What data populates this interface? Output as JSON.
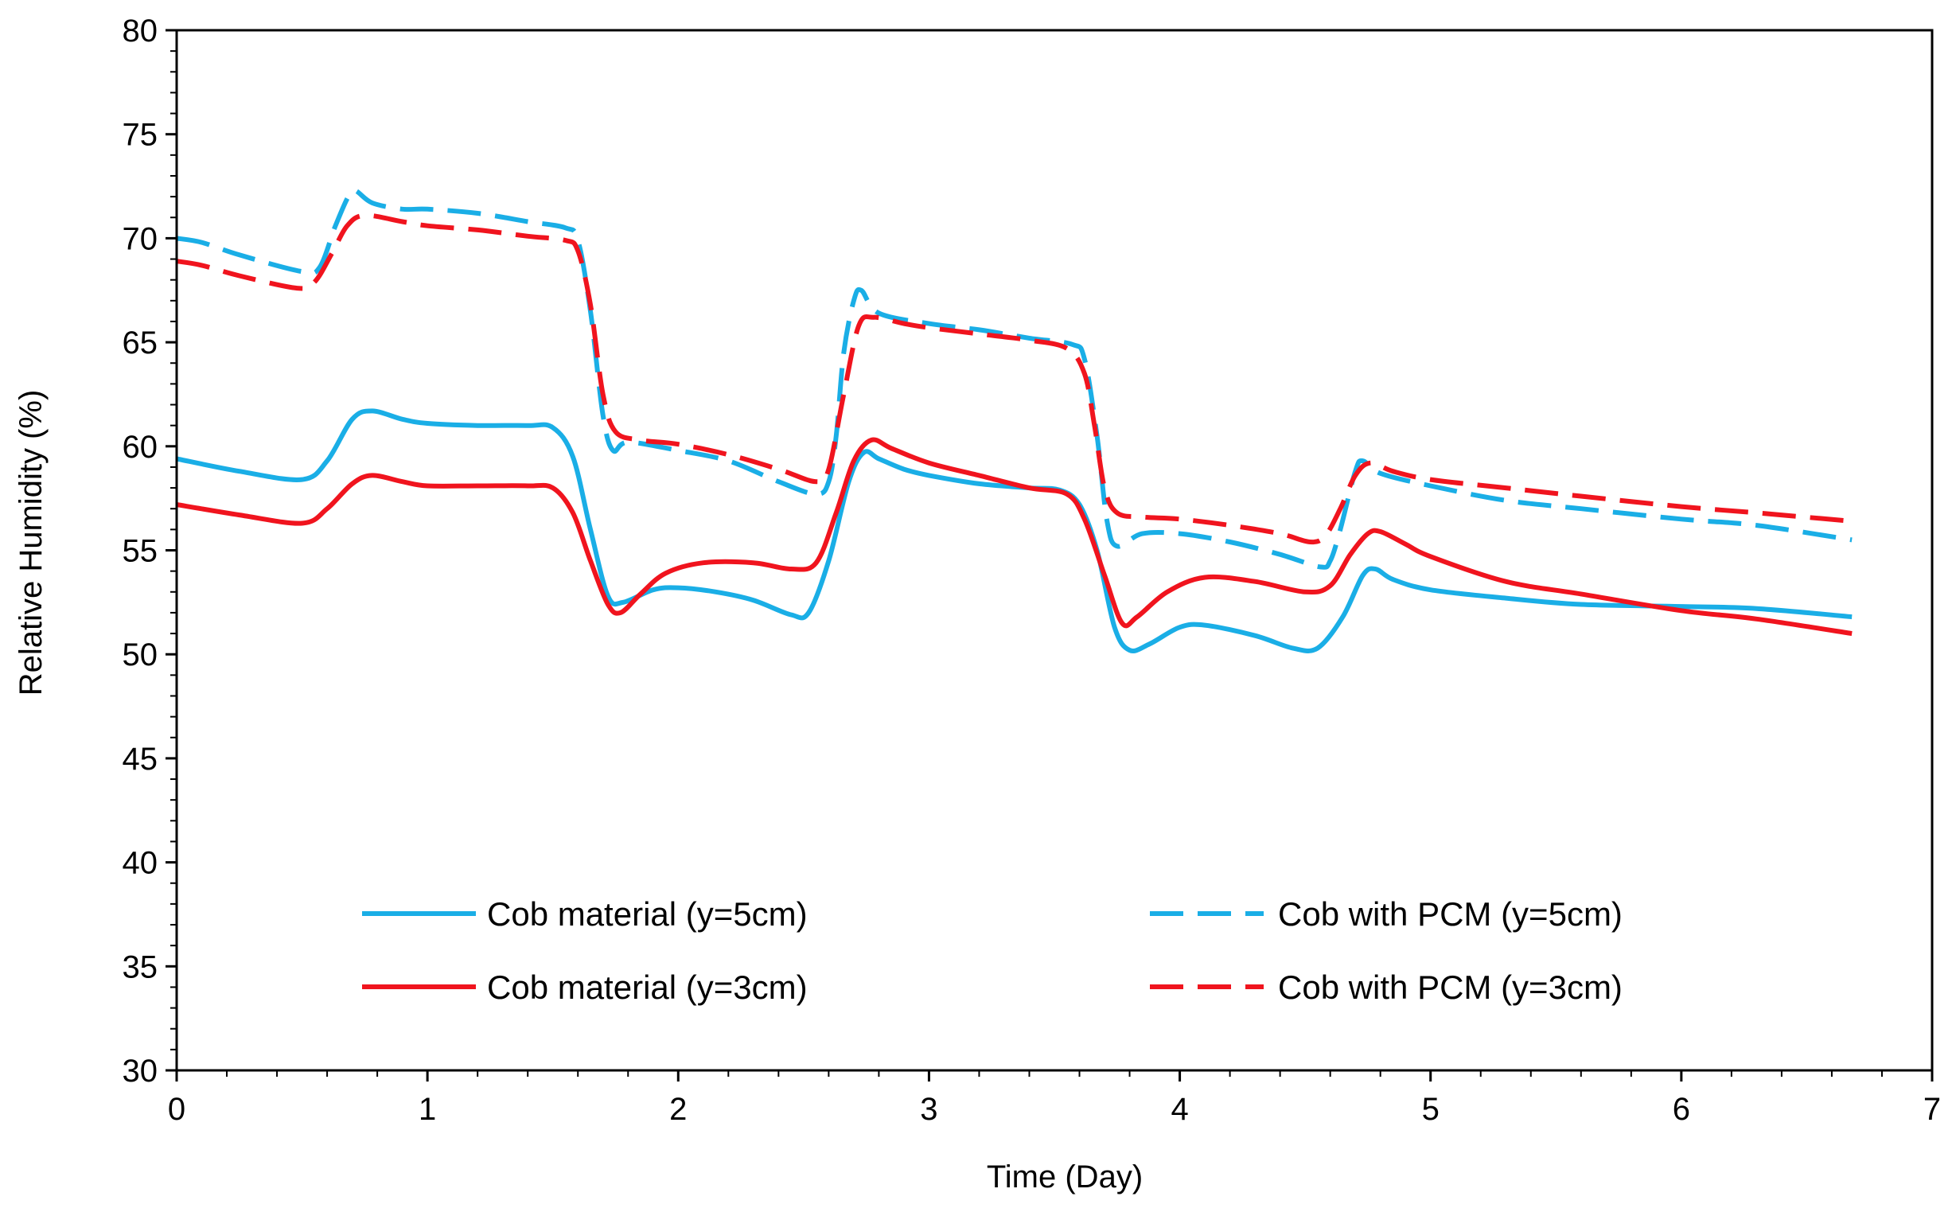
{
  "chart_data": {
    "type": "line",
    "title": "",
    "xlabel": "Time (Day)",
    "ylabel": "Relative Humidity (%)",
    "xlim": [
      0,
      7
    ],
    "ylim": [
      30,
      80
    ],
    "x_ticks": [
      "0",
      "1",
      "2",
      "3",
      "4",
      "5",
      "6",
      "7"
    ],
    "y_ticks": [
      "30",
      "35",
      "40",
      "45",
      "50",
      "55",
      "60",
      "65",
      "70",
      "75",
      "80"
    ],
    "grid": false,
    "legend_position": "lower-center",
    "series": [
      {
        "name": "Cob material (y=5cm)",
        "color": "#1aaee6",
        "style": "solid",
        "points": [
          [
            0,
            59.4
          ],
          [
            0.25,
            58.8
          ],
          [
            0.5,
            58.4
          ],
          [
            0.6,
            59.3
          ],
          [
            0.7,
            61.3
          ],
          [
            0.78,
            61.7
          ],
          [
            0.9,
            61.3
          ],
          [
            1.0,
            61.1
          ],
          [
            1.2,
            61.0
          ],
          [
            1.4,
            61.0
          ],
          [
            1.5,
            60.9
          ],
          [
            1.58,
            59.5
          ],
          [
            1.65,
            56.0
          ],
          [
            1.72,
            52.8
          ],
          [
            1.78,
            52.5
          ],
          [
            1.9,
            53.1
          ],
          [
            2.0,
            53.2
          ],
          [
            2.15,
            53.0
          ],
          [
            2.3,
            52.6
          ],
          [
            2.45,
            51.9
          ],
          [
            2.52,
            52.0
          ],
          [
            2.6,
            54.5
          ],
          [
            2.68,
            58.3
          ],
          [
            2.74,
            59.7
          ],
          [
            2.8,
            59.4
          ],
          [
            2.9,
            58.9
          ],
          [
            3.0,
            58.6
          ],
          [
            3.2,
            58.2
          ],
          [
            3.4,
            58.0
          ],
          [
            3.52,
            57.9
          ],
          [
            3.6,
            57.2
          ],
          [
            3.67,
            55.0
          ],
          [
            3.74,
            51.3
          ],
          [
            3.8,
            50.2
          ],
          [
            3.88,
            50.5
          ],
          [
            4.0,
            51.3
          ],
          [
            4.1,
            51.4
          ],
          [
            4.3,
            50.9
          ],
          [
            4.45,
            50.3
          ],
          [
            4.55,
            50.3
          ],
          [
            4.65,
            51.8
          ],
          [
            4.73,
            53.8
          ],
          [
            4.78,
            54.1
          ],
          [
            4.85,
            53.6
          ],
          [
            5.0,
            53.1
          ],
          [
            5.3,
            52.7
          ],
          [
            5.6,
            52.4
          ],
          [
            6.0,
            52.3
          ],
          [
            6.3,
            52.2
          ],
          [
            6.68,
            51.8
          ]
        ]
      },
      {
        "name": "Cob material (y=3cm)",
        "color": "#f0141e",
        "style": "solid",
        "points": [
          [
            0,
            57.2
          ],
          [
            0.25,
            56.7
          ],
          [
            0.5,
            56.3
          ],
          [
            0.6,
            57.0
          ],
          [
            0.7,
            58.2
          ],
          [
            0.78,
            58.6
          ],
          [
            0.9,
            58.3
          ],
          [
            1.0,
            58.1
          ],
          [
            1.2,
            58.1
          ],
          [
            1.4,
            58.1
          ],
          [
            1.5,
            58.0
          ],
          [
            1.58,
            56.8
          ],
          [
            1.65,
            54.5
          ],
          [
            1.72,
            52.4
          ],
          [
            1.77,
            52.0
          ],
          [
            1.85,
            52.9
          ],
          [
            1.95,
            53.9
          ],
          [
            2.1,
            54.4
          ],
          [
            2.3,
            54.4
          ],
          [
            2.45,
            54.1
          ],
          [
            2.55,
            54.4
          ],
          [
            2.63,
            56.8
          ],
          [
            2.7,
            59.3
          ],
          [
            2.77,
            60.3
          ],
          [
            2.85,
            59.9
          ],
          [
            3.0,
            59.2
          ],
          [
            3.2,
            58.6
          ],
          [
            3.4,
            58.0
          ],
          [
            3.55,
            57.7
          ],
          [
            3.62,
            56.5
          ],
          [
            3.7,
            53.8
          ],
          [
            3.77,
            51.5
          ],
          [
            3.83,
            51.8
          ],
          [
            3.95,
            53.0
          ],
          [
            4.1,
            53.7
          ],
          [
            4.3,
            53.5
          ],
          [
            4.5,
            53.0
          ],
          [
            4.6,
            53.3
          ],
          [
            4.68,
            54.8
          ],
          [
            4.75,
            55.8
          ],
          [
            4.8,
            55.9
          ],
          [
            4.9,
            55.3
          ],
          [
            5.0,
            54.7
          ],
          [
            5.3,
            53.5
          ],
          [
            5.6,
            52.9
          ],
          [
            6.0,
            52.1
          ],
          [
            6.3,
            51.7
          ],
          [
            6.68,
            51.0
          ]
        ]
      },
      {
        "name": "Cob with PCM (y=5cm)",
        "color": "#1aaee6",
        "style": "dashed",
        "points": [
          [
            0,
            70.0
          ],
          [
            0.1,
            69.8
          ],
          [
            0.25,
            69.2
          ],
          [
            0.5,
            68.4
          ],
          [
            0.57,
            68.6
          ],
          [
            0.63,
            70.5
          ],
          [
            0.68,
            71.9
          ],
          [
            0.71,
            72.3
          ],
          [
            0.78,
            71.7
          ],
          [
            0.9,
            71.4
          ],
          [
            1.0,
            71.4
          ],
          [
            1.2,
            71.2
          ],
          [
            1.4,
            70.8
          ],
          [
            1.55,
            70.5
          ],
          [
            1.6,
            69.9
          ],
          [
            1.65,
            66.5
          ],
          [
            1.7,
            61.5
          ],
          [
            1.74,
            59.8
          ],
          [
            1.8,
            60.2
          ],
          [
            2.0,
            59.8
          ],
          [
            2.2,
            59.3
          ],
          [
            2.4,
            58.3
          ],
          [
            2.55,
            57.7
          ],
          [
            2.6,
            58.3
          ],
          [
            2.63,
            60.5
          ],
          [
            2.66,
            64.5
          ],
          [
            2.7,
            67.0
          ],
          [
            2.73,
            67.5
          ],
          [
            2.8,
            66.4
          ],
          [
            3.0,
            65.9
          ],
          [
            3.2,
            65.6
          ],
          [
            3.4,
            65.2
          ],
          [
            3.57,
            64.9
          ],
          [
            3.62,
            64.2
          ],
          [
            3.67,
            60.5
          ],
          [
            3.71,
            56.4
          ],
          [
            3.75,
            55.2
          ],
          [
            3.85,
            55.8
          ],
          [
            4.0,
            55.8
          ],
          [
            4.2,
            55.4
          ],
          [
            4.4,
            54.8
          ],
          [
            4.56,
            54.2
          ],
          [
            4.6,
            54.5
          ],
          [
            4.64,
            56.0
          ],
          [
            4.7,
            58.8
          ],
          [
            4.73,
            59.3
          ],
          [
            4.8,
            58.7
          ],
          [
            5.0,
            58.1
          ],
          [
            5.3,
            57.4
          ],
          [
            5.6,
            57.0
          ],
          [
            6.0,
            56.5
          ],
          [
            6.3,
            56.2
          ],
          [
            6.68,
            55.5
          ]
        ]
      },
      {
        "name": "Cob with PCM (y=3cm)",
        "color": "#f0141e",
        "style": "dashed",
        "points": [
          [
            0,
            68.9
          ],
          [
            0.1,
            68.7
          ],
          [
            0.25,
            68.2
          ],
          [
            0.48,
            67.6
          ],
          [
            0.55,
            67.9
          ],
          [
            0.62,
            69.3
          ],
          [
            0.68,
            70.6
          ],
          [
            0.75,
            71.1
          ],
          [
            0.9,
            70.8
          ],
          [
            1.0,
            70.6
          ],
          [
            1.2,
            70.4
          ],
          [
            1.4,
            70.1
          ],
          [
            1.55,
            69.9
          ],
          [
            1.6,
            69.4
          ],
          [
            1.65,
            66.8
          ],
          [
            1.7,
            62.5
          ],
          [
            1.75,
            60.7
          ],
          [
            1.85,
            60.3
          ],
          [
            2.0,
            60.1
          ],
          [
            2.2,
            59.6
          ],
          [
            2.4,
            58.9
          ],
          [
            2.55,
            58.3
          ],
          [
            2.6,
            58.9
          ],
          [
            2.66,
            62.5
          ],
          [
            2.72,
            65.8
          ],
          [
            2.78,
            66.2
          ],
          [
            2.9,
            65.9
          ],
          [
            3.0,
            65.7
          ],
          [
            3.2,
            65.4
          ],
          [
            3.4,
            65.1
          ],
          [
            3.55,
            64.7
          ],
          [
            3.62,
            63.5
          ],
          [
            3.66,
            61.0
          ],
          [
            3.7,
            58.0
          ],
          [
            3.75,
            56.8
          ],
          [
            3.85,
            56.6
          ],
          [
            4.0,
            56.5
          ],
          [
            4.2,
            56.2
          ],
          [
            4.4,
            55.8
          ],
          [
            4.52,
            55.4
          ],
          [
            4.58,
            55.7
          ],
          [
            4.64,
            57.0
          ],
          [
            4.7,
            58.6
          ],
          [
            4.76,
            59.2
          ],
          [
            4.85,
            58.8
          ],
          [
            5.0,
            58.4
          ],
          [
            5.3,
            58.0
          ],
          [
            5.6,
            57.6
          ],
          [
            6.0,
            57.1
          ],
          [
            6.3,
            56.8
          ],
          [
            6.68,
            56.4
          ]
        ]
      }
    ]
  }
}
